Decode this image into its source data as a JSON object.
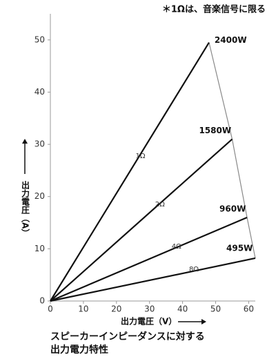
{
  "chart_data": {
    "type": "line",
    "note": "＊1Ωは、音楽信号に限る",
    "xlabel": "出力電圧（V）",
    "ylabel": "出力電圧（A）",
    "caption": [
      "スピーカーインピーダンスに対する",
      "出力電力特性"
    ],
    "xlim": [
      0,
      62
    ],
    "xticks": [
      0,
      10,
      20,
      30,
      40,
      50,
      60
    ],
    "ylim": [
      0,
      55
    ],
    "yticks": [
      0,
      10,
      20,
      30,
      40,
      50
    ],
    "envelope_color": "#888888",
    "series": [
      {
        "name": "1Ω",
        "label": "2400W",
        "color": "#111111",
        "x": [
          0,
          48
        ],
        "values": [
          0,
          49.5
        ]
      },
      {
        "name": "2Ω",
        "label": "1580W",
        "color": "#111111",
        "x": [
          0,
          55
        ],
        "values": [
          0,
          31
        ]
      },
      {
        "name": "4Ω",
        "label": "960W",
        "color": "#111111",
        "x": [
          0,
          59.5
        ],
        "values": [
          0,
          16
        ]
      },
      {
        "name": "8Ω",
        "label": "495W",
        "color": "#111111",
        "x": [
          0,
          62
        ],
        "values": [
          0,
          8.2
        ]
      }
    ]
  }
}
